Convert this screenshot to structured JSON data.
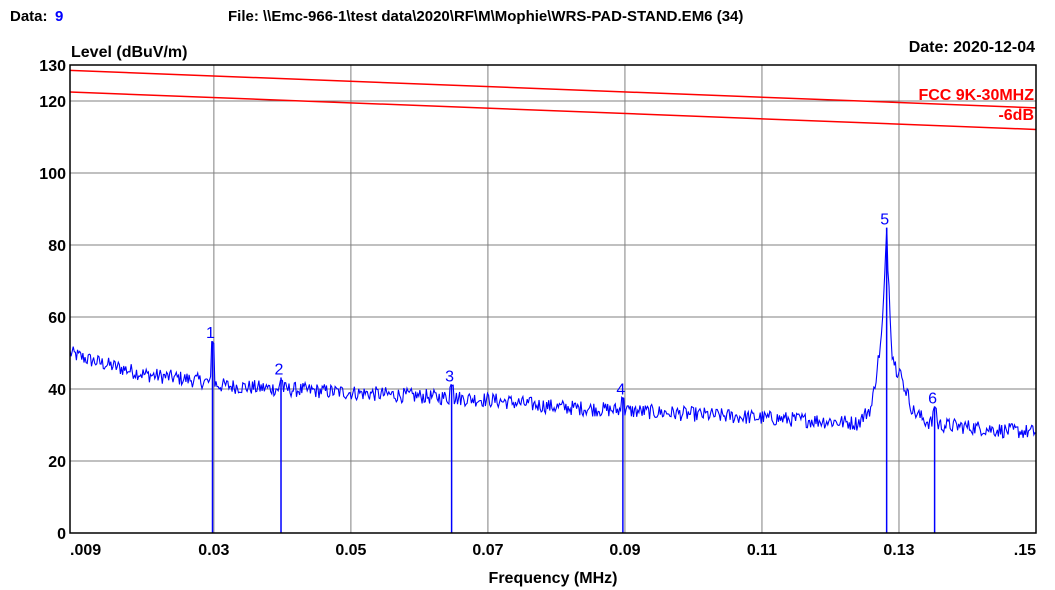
{
  "header": {
    "data_label": "Data:",
    "data_value": "9",
    "file_text": "File: \\\\Emc-966-1\\test data\\2020\\RF\\M\\Mophie\\WRS-PAD-STAND.EM6  (34)",
    "date_text": "Date: 2020-12-04"
  },
  "colors": {
    "trace": "#0000ff",
    "limit": "#ff0000",
    "grid": "#808080",
    "axis": "#000000",
    "data_value": "#0000ff"
  },
  "chart_data": {
    "type": "line",
    "xlabel": "Frequency (MHz)",
    "ylabel": "Level (dBuV/m)",
    "xlim": [
      0.009,
      0.15
    ],
    "ylim": [
      0,
      130
    ],
    "x_ticks": [
      ".009",
      "0.03",
      "0.05",
      "0.07",
      "0.09",
      "0.11",
      "0.13",
      ".15"
    ],
    "x_tick_values": [
      0.009,
      0.03,
      0.05,
      0.07,
      0.09,
      0.11,
      0.13,
      0.15
    ],
    "y_ticks": [
      "0",
      "20",
      "40",
      "60",
      "80",
      "100",
      "120",
      "130"
    ],
    "y_tick_values": [
      0,
      20,
      40,
      60,
      80,
      100,
      120,
      130
    ],
    "grid": true,
    "limit_lines": [
      {
        "name": "FCC 9K-30MHZ",
        "x": [
          0.009,
          0.15
        ],
        "y": [
          128.5,
          118.1
        ]
      },
      {
        "name": "-6dB",
        "x": [
          0.009,
          0.15
        ],
        "y": [
          122.5,
          112.1
        ]
      }
    ],
    "trace_anchor_points": {
      "x": [
        0.009,
        0.012,
        0.016,
        0.02,
        0.025,
        0.029,
        0.031,
        0.035,
        0.04,
        0.045,
        0.05,
        0.055,
        0.06,
        0.065,
        0.07,
        0.075,
        0.08,
        0.085,
        0.09,
        0.095,
        0.1,
        0.105,
        0.11,
        0.115,
        0.12,
        0.124,
        0.126,
        0.1275,
        0.1282,
        0.129,
        0.13,
        0.131,
        0.132,
        0.134,
        0.136,
        0.14,
        0.145,
        0.15
      ],
      "y": [
        50,
        48,
        46,
        44,
        43,
        42,
        41,
        40.5,
        40,
        39.5,
        39,
        38.5,
        38,
        37.5,
        37,
        36,
        35,
        34.5,
        34,
        33.5,
        33,
        32.5,
        32,
        31.5,
        31,
        30.5,
        35,
        55,
        82,
        50,
        43,
        40,
        34,
        31,
        30,
        29.5,
        28.5,
        28
      ]
    },
    "markers": [
      {
        "label": "1",
        "x": 0.0298,
        "y": 53.3
      },
      {
        "label": "2",
        "x": 0.0398,
        "y": 43.2
      },
      {
        "label": "3",
        "x": 0.0647,
        "y": 41.3
      },
      {
        "label": "4",
        "x": 0.0897,
        "y": 37.7
      },
      {
        "label": "5",
        "x": 0.1282,
        "y": 84.8
      },
      {
        "label": "6",
        "x": 0.1352,
        "y": 35.2
      }
    ]
  }
}
